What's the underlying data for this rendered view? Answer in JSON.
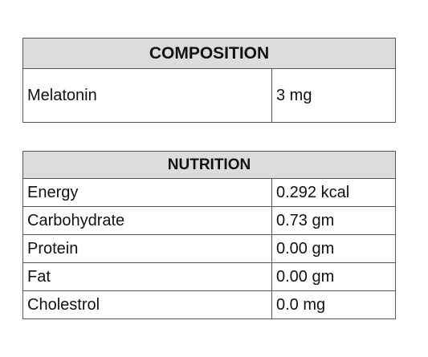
{
  "composition": {
    "title": "COMPOSITION",
    "rows": [
      [
        "Melatonin",
        "3 mg"
      ]
    ]
  },
  "nutrition": {
    "title": "NUTRITION",
    "rows": [
      [
        "Energy",
        "0.292 kcal"
      ],
      [
        "Carbohydrate",
        "0.73 gm"
      ],
      [
        "Protein",
        "0.00 gm"
      ],
      [
        "Fat",
        "0.00 gm"
      ],
      [
        "Cholestrol",
        "0.0 mg"
      ]
    ]
  }
}
